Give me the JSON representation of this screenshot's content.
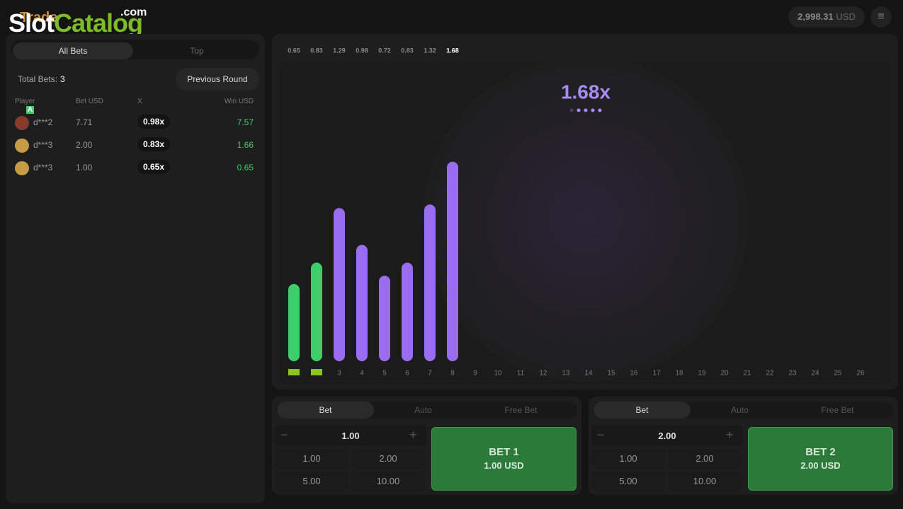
{
  "header": {
    "game": "Trade",
    "logo": "Slot",
    "logo_accent": "Catalog",
    "logo_suffix": ".com",
    "balance": "2,998.31",
    "currency": "USD"
  },
  "bets_panel": {
    "tabs": [
      "All Bets",
      "Top"
    ],
    "total_label": "Total Bets:",
    "total": 3,
    "previous_round": "Previous Round",
    "badge": "A",
    "columns": [
      "Player",
      "Bet USD",
      "X",
      "Win USD"
    ],
    "rows": [
      {
        "player": "d***2",
        "bet": "7.71",
        "x": "0.98x",
        "win": "7.57"
      },
      {
        "player": "d***3",
        "bet": "2.00",
        "x": "0.83x",
        "win": "1.66"
      },
      {
        "player": "d***3",
        "bet": "1.00",
        "x": "0.65x",
        "win": "0.65"
      }
    ]
  },
  "game": {
    "history": [
      0.65,
      0.83,
      1.29,
      0.98,
      0.72,
      0.83,
      1.32,
      1.68
    ],
    "bar_colors": [
      "#3fcf6a",
      "#3fcf6a",
      "#9a6cf0",
      "#9a6cf0",
      "#9a6cf0",
      "#9a6cf0",
      "#9a6cf0",
      "#9a6cf0"
    ],
    "current": "1.68x",
    "slots": [
      null,
      null,
      3,
      4,
      5,
      6,
      7,
      8,
      9,
      10,
      11,
      12,
      13,
      14,
      15,
      16,
      17,
      18,
      19,
      20,
      21,
      22,
      23,
      24,
      25,
      26
    ]
  },
  "bet_panels": [
    {
      "tabs": [
        "Bet",
        "Auto",
        "Free Bet"
      ],
      "amount": "1.00",
      "quick": [
        "1.00",
        "2.00",
        "5.00",
        "10.00"
      ],
      "button": "BET 1",
      "button_amount": "1.00 USD"
    },
    {
      "tabs": [
        "Bet",
        "Auto",
        "Free Bet"
      ],
      "amount": "2.00",
      "quick": [
        "1.00",
        "2.00",
        "5.00",
        "10.00"
      ],
      "button": "BET 2",
      "button_amount": "2.00 USD"
    }
  ]
}
